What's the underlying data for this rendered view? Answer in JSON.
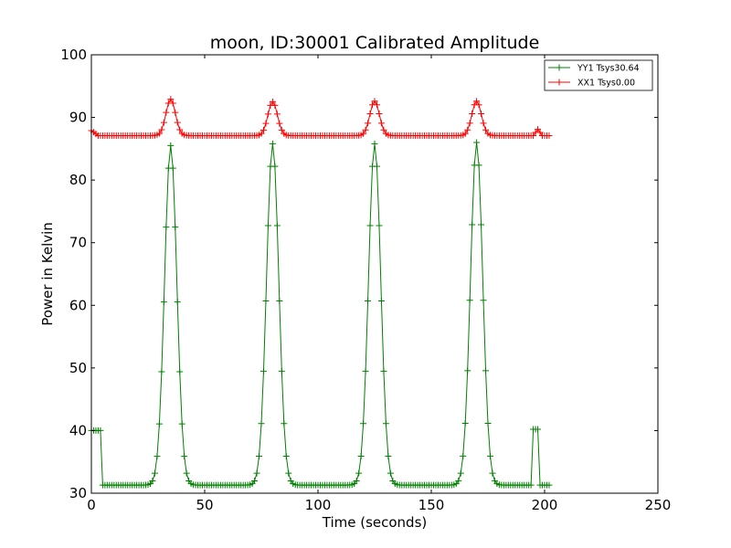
{
  "colors": {
    "yy1": "#008000",
    "xx1": "#ff0000",
    "axes": "#000000",
    "background": "#ffffff"
  },
  "chart_data": {
    "type": "line",
    "title": "moon, ID:30001 Calibrated Amplitude",
    "xlabel": "Time (seconds)",
    "ylabel": "Power in Kelvin",
    "xlim": [
      0,
      250
    ],
    "ylim": [
      30,
      100
    ],
    "xticks": [
      0,
      50,
      100,
      150,
      200,
      250
    ],
    "yticks": [
      30,
      40,
      50,
      60,
      70,
      80,
      90,
      100
    ],
    "grid": false,
    "legend_position": "top-right",
    "marker": "plus",
    "time_range": [
      0,
      202
    ],
    "series": [
      {
        "key": "yy1",
        "name": "YY1 Tsys30.64",
        "baseline": 31.3,
        "peaks": [
          {
            "t": 35,
            "value": 85.5
          },
          {
            "t": 80,
            "value": 85.8
          },
          {
            "t": 125,
            "value": 85.8
          },
          {
            "t": 170,
            "value": 86.0
          }
        ],
        "peak_width_sigma": 2.7,
        "steps": [
          {
            "from": 0,
            "to": 4.5,
            "value": 40.0
          },
          {
            "from": 195,
            "to": 198,
            "value": 40.2
          }
        ]
      },
      {
        "key": "xx1",
        "name": "XX1 Tsys0.00",
        "baseline": 87.1,
        "peaks": [
          {
            "t": 35,
            "value": 92.9
          },
          {
            "t": 80,
            "value": 92.5
          },
          {
            "t": 125,
            "value": 92.6
          },
          {
            "t": 170,
            "value": 92.6
          }
        ],
        "peak_width_sigma": 2.1,
        "start_value": 87.9,
        "end_bump": {
          "t": 197,
          "value": 88.1
        }
      }
    ]
  }
}
